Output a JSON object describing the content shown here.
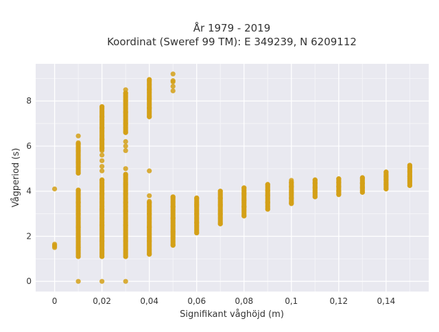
{
  "chart_data": {
    "type": "scatter",
    "title": [
      "År 1979 - 2019",
      "Koordinat (Sweref 99 TM): E 349239, N 6209112"
    ],
    "xlabel": "Signifikant våghöjd (m)",
    "ylabel": "Vågperiod (s)",
    "xlim": [
      -0.008,
      0.158
    ],
    "ylim": [
      -0.45,
      9.65
    ],
    "x_ticks": [
      0,
      0.02,
      0.04,
      0.06,
      0.08,
      0.1,
      0.12,
      0.14
    ],
    "x_tick_labels": [
      "0",
      "0,02",
      "0,04",
      "0,06",
      "0,08",
      "0,1",
      "0,12",
      "0,14"
    ],
    "y_ticks": [
      0,
      2,
      4,
      6,
      8
    ],
    "y_tick_labels": [
      "0",
      "2",
      "4",
      "6",
      "8"
    ],
    "grid": true,
    "marker_color": "#D4A017",
    "background_color": "#E9E9F0",
    "series": [
      {
        "points": [
          [
            0,
            1.5
          ],
          [
            0,
            1.55
          ],
          [
            0,
            1.6
          ],
          [
            0,
            1.65
          ],
          [
            0,
            4.1
          ],
          [
            0.01,
            0
          ],
          [
            0.01,
            1.1
          ],
          [
            0.01,
            1.5
          ],
          [
            0.01,
            2.0
          ],
          [
            0.01,
            2.4
          ],
          [
            0.01,
            3.0
          ],
          [
            0.01,
            3.5
          ],
          [
            0.01,
            4.05
          ],
          [
            0.01,
            4.8
          ],
          [
            0.01,
            5.3
          ],
          [
            0.01,
            5.8
          ],
          [
            0.01,
            6.1
          ],
          [
            0.01,
            6.45
          ],
          [
            0.02,
            0
          ],
          [
            0.02,
            1.1
          ],
          [
            0.02,
            1.8
          ],
          [
            0.02,
            2.5
          ],
          [
            0.02,
            3.2
          ],
          [
            0.02,
            3.9
          ],
          [
            0.02,
            4.5
          ],
          [
            0.02,
            4.9
          ],
          [
            0.02,
            5.1
          ],
          [
            0.02,
            5.35
          ],
          [
            0.02,
            5.6
          ],
          [
            0.02,
            5.9
          ],
          [
            0.02,
            6.3
          ],
          [
            0.02,
            6.8
          ],
          [
            0.02,
            7.3
          ],
          [
            0.02,
            7.75
          ],
          [
            0.03,
            0
          ],
          [
            0.03,
            1.1
          ],
          [
            0.03,
            1.8
          ],
          [
            0.03,
            2.5
          ],
          [
            0.03,
            3.1
          ],
          [
            0.03,
            3.5
          ],
          [
            0.03,
            3.9
          ],
          [
            0.03,
            4.3
          ],
          [
            0.03,
            4.75
          ],
          [
            0.03,
            5.0
          ],
          [
            0.03,
            5.8
          ],
          [
            0.03,
            6.0
          ],
          [
            0.03,
            6.2
          ],
          [
            0.03,
            6.6
          ],
          [
            0.03,
            7.0
          ],
          [
            0.03,
            7.5
          ],
          [
            0.03,
            8.0
          ],
          [
            0.03,
            8.35
          ],
          [
            0.03,
            8.5
          ],
          [
            0.04,
            1.2
          ],
          [
            0.04,
            1.8
          ],
          [
            0.04,
            2.4
          ],
          [
            0.04,
            3.0
          ],
          [
            0.04,
            3.5
          ],
          [
            0.04,
            3.8
          ],
          [
            0.04,
            4.9
          ],
          [
            0.04,
            7.3
          ],
          [
            0.04,
            7.7
          ],
          [
            0.04,
            8.1
          ],
          [
            0.04,
            8.5
          ],
          [
            0.04,
            8.95
          ],
          [
            0.05,
            1.6
          ],
          [
            0.05,
            2.2
          ],
          [
            0.05,
            2.8
          ],
          [
            0.05,
            3.3
          ],
          [
            0.05,
            3.75
          ],
          [
            0.05,
            8.45
          ],
          [
            0.05,
            8.65
          ],
          [
            0.05,
            8.85
          ],
          [
            0.05,
            8.9
          ],
          [
            0.05,
            9.2
          ],
          [
            0.06,
            2.15
          ],
          [
            0.06,
            2.6
          ],
          [
            0.06,
            3.0
          ],
          [
            0.06,
            3.4
          ],
          [
            0.06,
            3.7
          ],
          [
            0.07,
            2.55
          ],
          [
            0.07,
            3.0
          ],
          [
            0.07,
            3.4
          ],
          [
            0.07,
            3.7
          ],
          [
            0.07,
            4.0
          ],
          [
            0.08,
            2.9
          ],
          [
            0.08,
            3.3
          ],
          [
            0.08,
            3.6
          ],
          [
            0.08,
            3.9
          ],
          [
            0.08,
            4.15
          ],
          [
            0.09,
            3.2
          ],
          [
            0.09,
            3.5
          ],
          [
            0.09,
            3.8
          ],
          [
            0.09,
            4.05
          ],
          [
            0.09,
            4.3
          ],
          [
            0.1,
            3.45
          ],
          [
            0.1,
            3.7
          ],
          [
            0.1,
            3.95
          ],
          [
            0.1,
            4.2
          ],
          [
            0.1,
            4.4
          ],
          [
            0.1,
            4.48
          ],
          [
            0.11,
            3.75
          ],
          [
            0.11,
            3.95
          ],
          [
            0.11,
            4.15
          ],
          [
            0.11,
            4.35
          ],
          [
            0.11,
            4.5
          ],
          [
            0.12,
            3.85
          ],
          [
            0.12,
            4.0
          ],
          [
            0.12,
            4.2
          ],
          [
            0.12,
            4.4
          ],
          [
            0.12,
            4.55
          ],
          [
            0.13,
            3.95
          ],
          [
            0.13,
            4.15
          ],
          [
            0.13,
            4.35
          ],
          [
            0.13,
            4.6
          ],
          [
            0.14,
            4.1
          ],
          [
            0.14,
            4.3
          ],
          [
            0.14,
            4.5
          ],
          [
            0.14,
            4.65
          ],
          [
            0.14,
            4.85
          ],
          [
            0.15,
            4.25
          ],
          [
            0.15,
            4.45
          ],
          [
            0.15,
            4.65
          ],
          [
            0.15,
            4.85
          ],
          [
            0.15,
            5.05
          ],
          [
            0.15,
            5.15
          ]
        ],
        "dense_ranges": [
          [
            0.01,
            1.1,
            4.05
          ],
          [
            0.01,
            4.8,
            6.15
          ],
          [
            0.02,
            1.1,
            4.5
          ],
          [
            0.02,
            5.8,
            7.75
          ],
          [
            0.03,
            1.1,
            4.75
          ],
          [
            0.03,
            6.6,
            8.35
          ],
          [
            0.04,
            1.2,
            3.55
          ],
          [
            0.04,
            7.3,
            8.95
          ],
          [
            0.05,
            1.6,
            3.75
          ],
          [
            0.06,
            2.15,
            3.7
          ],
          [
            0.07,
            2.55,
            4.0
          ],
          [
            0.08,
            2.9,
            4.15
          ],
          [
            0.09,
            3.2,
            4.3
          ],
          [
            0.1,
            3.45,
            4.4
          ],
          [
            0.11,
            3.75,
            4.5
          ],
          [
            0.12,
            3.85,
            4.55
          ],
          [
            0.13,
            3.95,
            4.6
          ],
          [
            0.14,
            4.1,
            4.85
          ],
          [
            0.15,
            4.25,
            5.15
          ]
        ]
      }
    ]
  }
}
